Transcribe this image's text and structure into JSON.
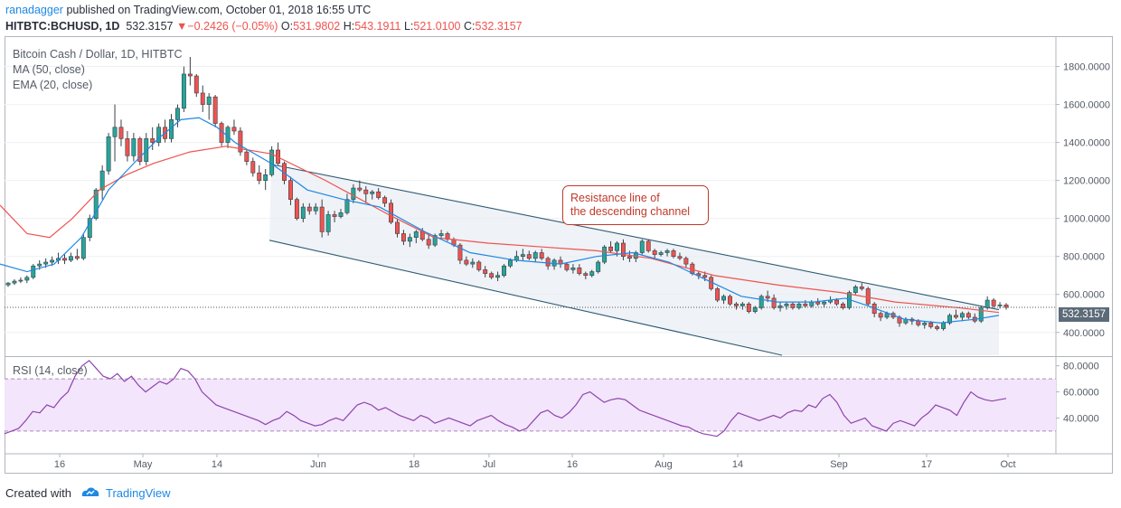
{
  "header": {
    "author": "ranadagger",
    "published_text": "published on TradingView.com, October 01, 2018 16:55 UTC",
    "symbol": "HITBTC:BCHUSD, 1D",
    "last": "532.3157",
    "arrow": "▼",
    "change": "−0.2426 (−0.05%)",
    "o_label": "O:",
    "o_value": "531.9802",
    "h_label": "H:",
    "h_value": "543.1911",
    "l_label": "L:",
    "l_value": "521.0100",
    "c_label": "C:",
    "c_value": "532.3157"
  },
  "legend": {
    "title": "Bitcoin Cash / Dollar, 1D, HITBTC",
    "ma": "MA (50, close)",
    "ema": "EMA (20, close)",
    "rsi": "RSI (14, close)"
  },
  "annotation": {
    "line1": "Resistance line of",
    "line2": "the descending channel"
  },
  "last_price_label": "532.3157",
  "footer": {
    "created_with": "Created with",
    "brand": "TradingView"
  },
  "colors": {
    "up": "#26a69a",
    "down": "#ef5350",
    "ma": "#ef5350",
    "ema": "#1e88e5",
    "rsi": "#8e44ad",
    "channel": "#2e5c72",
    "annotation": "#c0392b",
    "link": "#1e88e5"
  },
  "chart_data": [
    {
      "type": "candlestick",
      "title": "Bitcoin Cash / Dollar, 1D, HITBTC",
      "y_ticks": [
        "1800.0000",
        "1600.0000",
        "1400.0000",
        "1200.0000",
        "1000.0000",
        "800.0000",
        "600.0000",
        "400.0000"
      ],
      "x_ticks": [
        "16",
        "May",
        "14",
        "Jun",
        "18",
        "Jul",
        "16",
        "Aug",
        "14",
        "Sep",
        "17",
        "Oct"
      ],
      "ylim": [
        280,
        1950
      ],
      "grid": true,
      "candles": [
        [
          650,
          665,
          640,
          660
        ],
        [
          660,
          680,
          650,
          670
        ],
        [
          670,
          690,
          660,
          675
        ],
        [
          675,
          700,
          660,
          690
        ],
        [
          690,
          760,
          680,
          750
        ],
        [
          750,
          780,
          730,
          760
        ],
        [
          760,
          790,
          740,
          770
        ],
        [
          770,
          800,
          750,
          780
        ],
        [
          780,
          820,
          760,
          790
        ],
        [
          790,
          810,
          760,
          780
        ],
        [
          780,
          820,
          770,
          800
        ],
        [
          800,
          840,
          780,
          790
        ],
        [
          790,
          920,
          780,
          900
        ],
        [
          900,
          1020,
          880,
          1000
        ],
        [
          1000,
          1160,
          990,
          1150
        ],
        [
          1150,
          1280,
          1100,
          1250
        ],
        [
          1250,
          1450,
          1230,
          1430
        ],
        [
          1430,
          1600,
          1300,
          1480
        ],
        [
          1480,
          1520,
          1380,
          1420
        ],
        [
          1420,
          1460,
          1300,
          1330
        ],
        [
          1330,
          1450,
          1300,
          1420
        ],
        [
          1420,
          1430,
          1280,
          1300
        ],
        [
          1300,
          1450,
          1280,
          1420
        ],
        [
          1420,
          1480,
          1360,
          1400
        ],
        [
          1400,
          1500,
          1380,
          1480
        ],
        [
          1480,
          1520,
          1400,
          1420
        ],
        [
          1420,
          1550,
          1400,
          1520
        ],
        [
          1520,
          1600,
          1480,
          1580
        ],
        [
          1580,
          1800,
          1560,
          1760
        ],
        [
          1760,
          1850,
          1700,
          1750
        ],
        [
          1750,
          1760,
          1640,
          1660
        ],
        [
          1660,
          1700,
          1560,
          1600
        ],
        [
          1600,
          1660,
          1520,
          1640
        ],
        [
          1640,
          1650,
          1480,
          1500
        ],
        [
          1500,
          1510,
          1380,
          1400
        ],
        [
          1400,
          1490,
          1370,
          1480
        ],
        [
          1480,
          1520,
          1440,
          1460
        ],
        [
          1460,
          1480,
          1330,
          1350
        ],
        [
          1350,
          1360,
          1280,
          1300
        ],
        [
          1300,
          1320,
          1220,
          1240
        ],
        [
          1240,
          1280,
          1180,
          1200
        ],
        [
          1200,
          1260,
          1150,
          1230
        ],
        [
          1230,
          1380,
          1220,
          1360
        ],
        [
          1360,
          1400,
          1280,
          1290
        ],
        [
          1290,
          1300,
          1180,
          1200
        ],
        [
          1200,
          1220,
          1070,
          1100
        ],
        [
          1100,
          1110,
          990,
          1000
        ],
        [
          1000,
          1080,
          980,
          1060
        ],
        [
          1060,
          1080,
          1020,
          1040
        ],
        [
          1040,
          1080,
          1020,
          1060
        ],
        [
          1060,
          1100,
          900,
          930
        ],
        [
          930,
          1040,
          910,
          1020
        ],
        [
          1020,
          1040,
          980,
          1010
        ],
        [
          1010,
          1050,
          1000,
          1030
        ],
        [
          1030,
          1130,
          1020,
          1100
        ],
        [
          1100,
          1180,
          1080,
          1160
        ],
        [
          1160,
          1200,
          1140,
          1150
        ],
        [
          1150,
          1170,
          1080,
          1130
        ],
        [
          1130,
          1150,
          1100,
          1140
        ],
        [
          1140,
          1160,
          1100,
          1110
        ],
        [
          1110,
          1120,
          1060,
          1080
        ],
        [
          1080,
          1100,
          970,
          980
        ],
        [
          980,
          1000,
          900,
          920
        ],
        [
          920,
          940,
          860,
          880
        ],
        [
          880,
          920,
          850,
          900
        ],
        [
          900,
          940,
          870,
          930
        ],
        [
          930,
          950,
          880,
          890
        ],
        [
          890,
          920,
          840,
          860
        ],
        [
          860,
          920,
          850,
          910
        ],
        [
          910,
          940,
          890,
          920
        ],
        [
          920,
          930,
          880,
          890
        ],
        [
          890,
          900,
          850,
          860
        ],
        [
          860,
          870,
          760,
          780
        ],
        [
          780,
          800,
          750,
          760
        ],
        [
          760,
          790,
          740,
          770
        ],
        [
          770,
          780,
          720,
          730
        ],
        [
          730,
          750,
          690,
          710
        ],
        [
          710,
          720,
          680,
          690
        ],
        [
          690,
          720,
          670,
          700
        ],
        [
          700,
          760,
          690,
          750
        ],
        [
          750,
          790,
          740,
          780
        ],
        [
          780,
          830,
          770,
          800
        ],
        [
          800,
          840,
          780,
          810
        ],
        [
          810,
          830,
          780,
          790
        ],
        [
          790,
          830,
          770,
          820
        ],
        [
          820,
          840,
          780,
          790
        ],
        [
          790,
          800,
          730,
          750
        ],
        [
          750,
          790,
          730,
          780
        ],
        [
          780,
          800,
          740,
          760
        ],
        [
          760,
          770,
          720,
          730
        ],
        [
          730,
          760,
          710,
          740
        ],
        [
          740,
          760,
          700,
          710
        ],
        [
          710,
          720,
          680,
          700
        ],
        [
          700,
          730,
          690,
          720
        ],
        [
          720,
          780,
          710,
          770
        ],
        [
          770,
          860,
          760,
          850
        ],
        [
          850,
          880,
          820,
          830
        ],
        [
          830,
          880,
          800,
          870
        ],
        [
          870,
          890,
          780,
          800
        ],
        [
          800,
          830,
          770,
          790
        ],
        [
          790,
          830,
          770,
          820
        ],
        [
          820,
          890,
          810,
          880
        ],
        [
          880,
          890,
          820,
          830
        ],
        [
          830,
          840,
          790,
          810
        ],
        [
          810,
          830,
          800,
          820
        ],
        [
          820,
          840,
          800,
          830
        ],
        [
          830,
          840,
          790,
          800
        ],
        [
          800,
          820,
          780,
          790
        ],
        [
          790,
          800,
          740,
          760
        ],
        [
          760,
          770,
          700,
          710
        ],
        [
          710,
          720,
          680,
          700
        ],
        [
          700,
          720,
          670,
          690
        ],
        [
          690,
          700,
          620,
          630
        ],
        [
          630,
          640,
          560,
          570
        ],
        [
          570,
          600,
          550,
          590
        ],
        [
          590,
          600,
          540,
          550
        ],
        [
          550,
          560,
          520,
          540
        ],
        [
          540,
          560,
          520,
          550
        ],
        [
          550,
          560,
          500,
          510
        ],
        [
          510,
          540,
          500,
          530
        ],
        [
          530,
          600,
          520,
          590
        ],
        [
          590,
          620,
          560,
          580
        ],
        [
          580,
          600,
          520,
          530
        ],
        [
          530,
          560,
          510,
          540
        ],
        [
          540,
          560,
          520,
          550
        ],
        [
          550,
          560,
          520,
          530
        ],
        [
          530,
          560,
          520,
          550
        ],
        [
          550,
          570,
          530,
          540
        ],
        [
          540,
          570,
          530,
          560
        ],
        [
          560,
          580,
          540,
          550
        ],
        [
          550,
          570,
          530,
          560
        ],
        [
          560,
          590,
          550,
          570
        ],
        [
          570,
          580,
          540,
          550
        ],
        [
          550,
          560,
          520,
          530
        ],
        [
          530,
          620,
          520,
          610
        ],
        [
          610,
          650,
          600,
          640
        ],
        [
          640,
          660,
          620,
          630
        ],
        [
          630,
          640,
          540,
          550
        ],
        [
          550,
          560,
          480,
          500
        ],
        [
          500,
          510,
          460,
          480
        ],
        [
          480,
          510,
          470,
          500
        ],
        [
          500,
          510,
          470,
          480
        ],
        [
          480,
          490,
          430,
          450
        ],
        [
          450,
          480,
          440,
          470
        ],
        [
          470,
          480,
          440,
          460
        ],
        [
          460,
          470,
          430,
          440
        ],
        [
          440,
          460,
          420,
          450
        ],
        [
          450,
          460,
          420,
          430
        ],
        [
          430,
          440,
          410,
          420
        ],
        [
          420,
          460,
          410,
          450
        ],
        [
          450,
          500,
          440,
          490
        ],
        [
          490,
          520,
          470,
          480
        ],
        [
          480,
          510,
          460,
          500
        ],
        [
          500,
          510,
          470,
          480
        ],
        [
          480,
          500,
          450,
          460
        ],
        [
          460,
          540,
          450,
          530
        ],
        [
          530,
          590,
          520,
          570
        ],
        [
          570,
          580,
          530,
          540
        ],
        [
          540,
          560,
          525,
          545
        ],
        [
          545,
          555,
          520,
          532
        ]
      ],
      "ma50": [
        [
          0,
          1070
        ],
        [
          30,
          920
        ],
        [
          55,
          900
        ],
        [
          80,
          1000
        ],
        [
          110,
          1150
        ],
        [
          140,
          1230
        ],
        [
          170,
          1290
        ],
        [
          210,
          1350
        ],
        [
          250,
          1380
        ],
        [
          300,
          1340
        ],
        [
          360,
          1200
        ],
        [
          430,
          1020
        ],
        [
          480,
          900
        ],
        [
          540,
          870
        ],
        [
          600,
          850
        ],
        [
          660,
          830
        ],
        [
          720,
          790
        ],
        [
          790,
          700
        ],
        [
          860,
          650
        ],
        [
          930,
          610
        ],
        [
          990,
          560
        ],
        [
          1060,
          530
        ],
        [
          1105,
          505
        ]
      ],
      "ema20": [
        [
          0,
          760
        ],
        [
          30,
          720
        ],
        [
          60,
          760
        ],
        [
          90,
          900
        ],
        [
          120,
          1150
        ],
        [
          150,
          1300
        ],
        [
          175,
          1420
        ],
        [
          200,
          1520
        ],
        [
          220,
          1530
        ],
        [
          240,
          1480
        ],
        [
          260,
          1400
        ],
        [
          300,
          1290
        ],
        [
          340,
          1150
        ],
        [
          380,
          1100
        ],
        [
          420,
          1060
        ],
        [
          470,
          930
        ],
        [
          520,
          820
        ],
        [
          570,
          780
        ],
        [
          620,
          760
        ],
        [
          660,
          800
        ],
        [
          700,
          820
        ],
        [
          740,
          770
        ],
        [
          780,
          680
        ],
        [
          820,
          590
        ],
        [
          860,
          560
        ],
        [
          900,
          560
        ],
        [
          935,
          580
        ],
        [
          960,
          540
        ],
        [
          1000,
          470
        ],
        [
          1040,
          450
        ],
        [
          1080,
          470
        ],
        [
          1105,
          490
        ]
      ],
      "channel_resistance": [
        [
          300,
          1285
        ],
        [
          1105,
          520
        ]
      ],
      "channel_support": [
        [
          298,
          885
        ],
        [
          865,
          280
        ]
      ],
      "last_price": 532.3157
    },
    {
      "type": "line",
      "title": "RSI (14, close)",
      "y_ticks": [
        "80.0000",
        "60.0000",
        "40.0000"
      ],
      "ylim": [
        14,
        86
      ],
      "band": [
        30,
        70
      ],
      "values": [
        28,
        30,
        32,
        38,
        45,
        44,
        50,
        48,
        55,
        60,
        72,
        80,
        84,
        78,
        72,
        70,
        74,
        68,
        72,
        65,
        60,
        64,
        68,
        66,
        70,
        78,
        76,
        70,
        60,
        55,
        50,
        48,
        46,
        44,
        42,
        40,
        38,
        35,
        38,
        40,
        45,
        42,
        38,
        36,
        34,
        35,
        38,
        40,
        38,
        44,
        50,
        52,
        50,
        46,
        48,
        45,
        42,
        40,
        38,
        42,
        40,
        36,
        38,
        40,
        38,
        36,
        34,
        38,
        40,
        42,
        38,
        35,
        33,
        30,
        32,
        38,
        44,
        46,
        42,
        40,
        44,
        50,
        58,
        60,
        56,
        52,
        54,
        55,
        54,
        50,
        46,
        44,
        42,
        40,
        38,
        36,
        34,
        33,
        30,
        28,
        27,
        26,
        30,
        38,
        44,
        42,
        40,
        38,
        40,
        42,
        40,
        44,
        46,
        45,
        50,
        48,
        55,
        58,
        52,
        42,
        36,
        38,
        40,
        34,
        32,
        30,
        36,
        38,
        36,
        34,
        40,
        44,
        50,
        48,
        46,
        42,
        52,
        60,
        56,
        54,
        53,
        54,
        55
      ]
    }
  ]
}
